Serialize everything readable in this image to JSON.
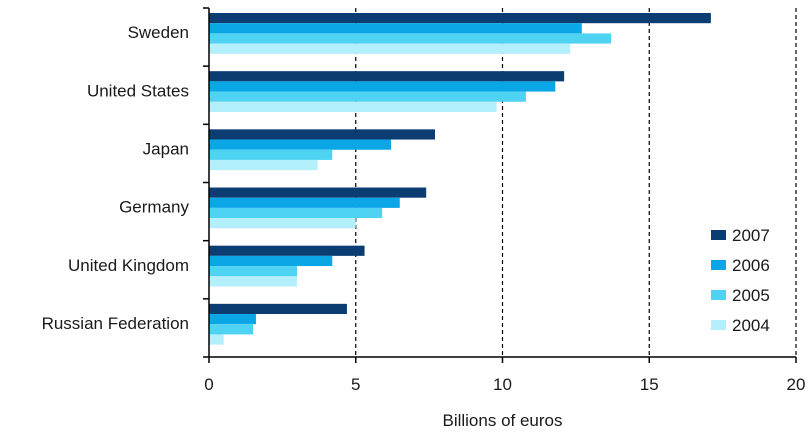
{
  "chart_data": {
    "type": "bar",
    "orientation": "horizontal",
    "categories": [
      "Sweden",
      "United States",
      "Japan",
      "Germany",
      "United Kingdom",
      "Russian Federation"
    ],
    "series": [
      {
        "name": "2007",
        "color": "#0b3d73",
        "values": [
          17.1,
          12.1,
          7.7,
          7.4,
          5.3,
          4.7
        ]
      },
      {
        "name": "2006",
        "color": "#0aa6e6",
        "values": [
          12.7,
          11.8,
          6.2,
          6.5,
          4.2,
          1.6
        ]
      },
      {
        "name": "2005",
        "color": "#4fd3f2",
        "values": [
          13.7,
          10.8,
          4.2,
          5.9,
          3.0,
          1.5
        ]
      },
      {
        "name": "2004",
        "color": "#b4f0fb",
        "values": [
          12.3,
          9.8,
          3.7,
          5.0,
          3.0,
          0.5
        ]
      }
    ],
    "xlabel": "Billions of euros",
    "xlim": [
      0,
      20
    ],
    "xticks": [
      0,
      5,
      10,
      15,
      20
    ],
    "grid": "vertical dashed",
    "legend_position": "bottom-right"
  }
}
